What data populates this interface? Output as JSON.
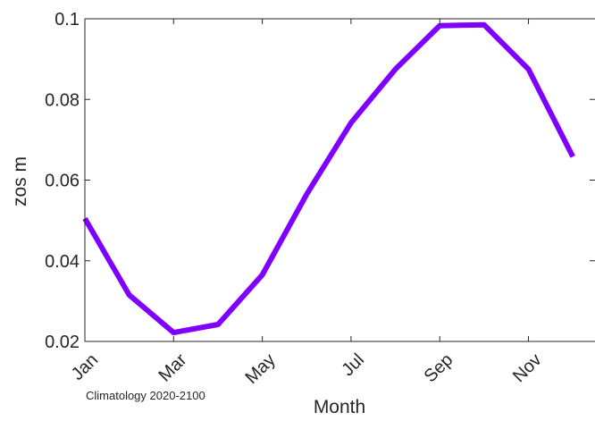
{
  "chart_data": {
    "type": "line",
    "title": "",
    "xlabel": "Month",
    "ylabel": "zos m",
    "annotation": "Climatology 2020-2100",
    "x": [
      1,
      2,
      3,
      4,
      5,
      6,
      7,
      8,
      9,
      10,
      11,
      12
    ],
    "xlim": [
      1,
      12.5
    ],
    "xticks": [
      1,
      3,
      5,
      7,
      9,
      11
    ],
    "xtick_labels": [
      "Jan",
      "Mar",
      "May",
      "Jul",
      "Sep",
      "Nov"
    ],
    "ylim": [
      0.02,
      0.1
    ],
    "yticks": [
      0.02,
      0.04,
      0.06,
      0.08,
      0.1
    ],
    "ytick_labels": [
      "0.02",
      "0.04",
      "0.06",
      "0.08",
      "0.1"
    ],
    "grid": false,
    "series": [
      {
        "color": "#8000ff",
        "values": [
          0.0505,
          0.0315,
          0.0222,
          0.0242,
          0.0365,
          0.0565,
          0.0742,
          0.0875,
          0.0983,
          0.0985,
          0.0875,
          0.0658
        ]
      }
    ]
  }
}
